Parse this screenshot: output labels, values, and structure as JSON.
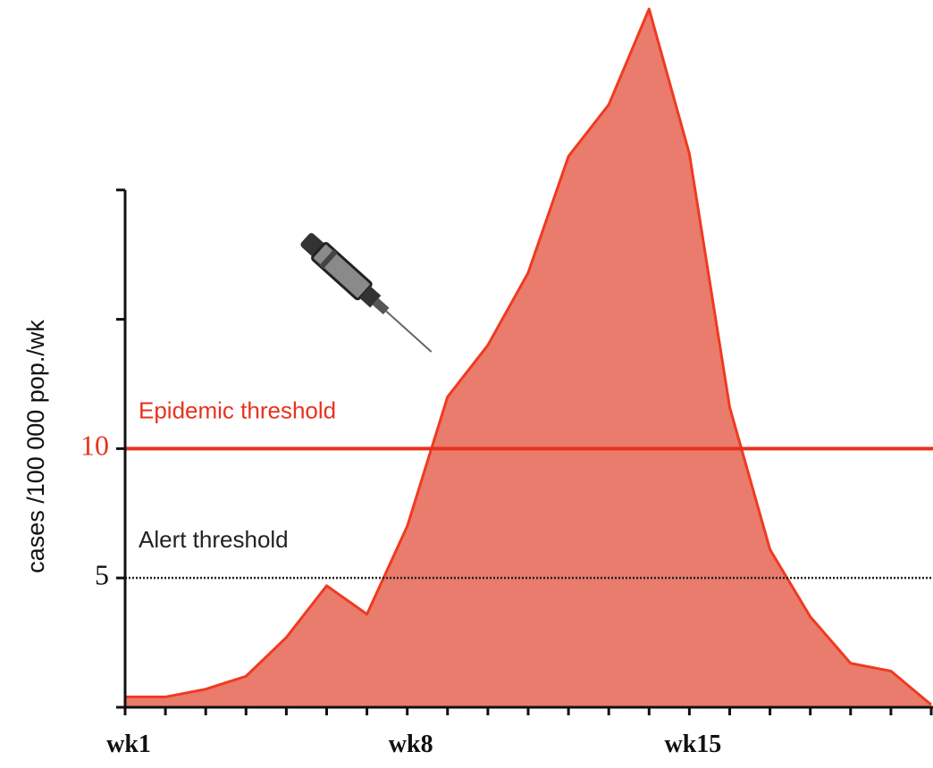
{
  "chart_data": {
    "type": "area",
    "y_label": "cases /100 000 pop./wk",
    "categories": [
      "wk1",
      null,
      null,
      null,
      null,
      null,
      null,
      "wk8",
      null,
      null,
      null,
      null,
      null,
      null,
      "wk15",
      null,
      null,
      null,
      null,
      null,
      null
    ],
    "values": [
      0.4,
      0.4,
      0.7,
      1.2,
      2.7,
      4.7,
      3.6,
      7.0,
      12.0,
      14.0,
      16.8,
      21.3,
      23.3,
      27.0,
      21.4,
      11.6,
      6.1,
      3.5,
      1.7,
      1.4,
      0.1
    ],
    "color": "#e97c6c",
    "line_color": "#f03a20",
    "ylim": [
      0,
      27
    ],
    "yticks": [
      {
        "value": 0,
        "label": null
      },
      5,
      10,
      {
        "value": 15,
        "label": null
      },
      {
        "value": 20,
        "label": null
      }
    ],
    "thresholds": [
      {
        "name": "Epidemic threshold",
        "value": 10,
        "color": "#e8321e",
        "style": "solid"
      },
      {
        "name": "Alert threshold",
        "value": 5,
        "color": "#222222",
        "style": "dotted"
      }
    ]
  }
}
